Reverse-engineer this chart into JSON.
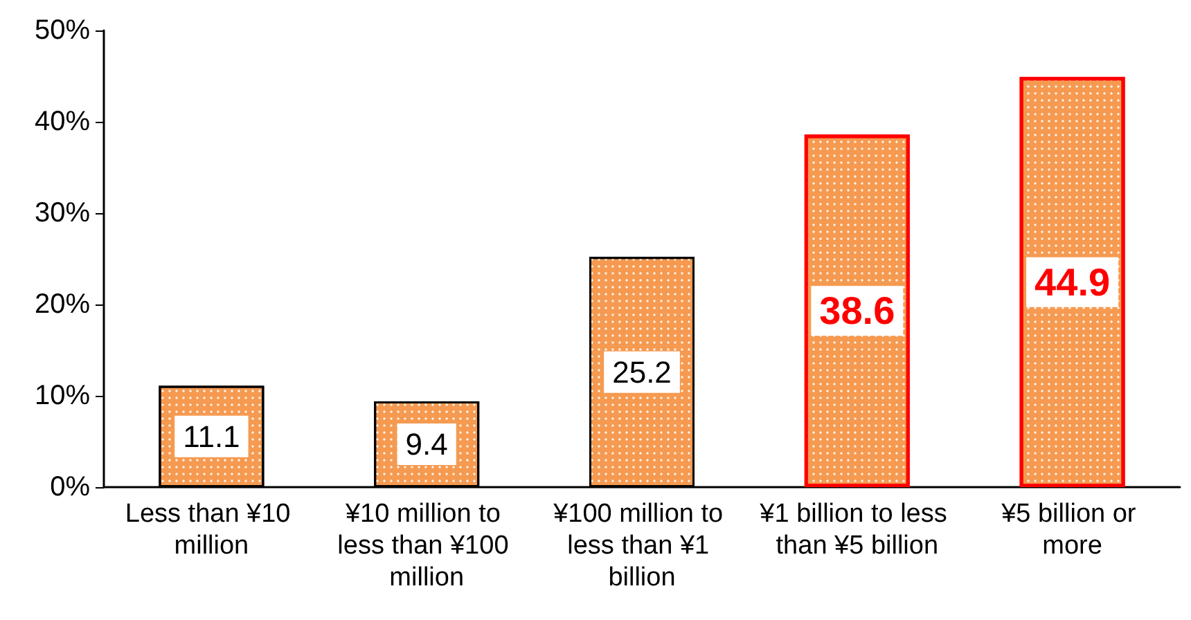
{
  "chart_data": {
    "type": "bar",
    "categories": [
      "Less than ¥10 million",
      "¥10 million to less than ¥100 million",
      "¥100 million to less than ¥1 billion",
      "¥1 billion to less than ¥5 billion",
      "¥5 billion or more"
    ],
    "series": [
      {
        "color": "#f59a50",
        "values": [
          11.1,
          9.4,
          25.2,
          null,
          null
        ]
      },
      {
        "color": "#f59a50",
        "values": [
          null,
          null,
          null,
          38.6,
          44.9
        ]
      }
    ],
    "stacked": true,
    "data_labels": true,
    "grid": false,
    "ylim": [
      0,
      50
    ],
    "yticks": [
      {
        "value": 0,
        "label": "0%"
      },
      {
        "value": 10,
        "label": "10%"
      },
      {
        "value": 20,
        "label": "20%"
      },
      {
        "value": 30,
        "label": "30%"
      },
      {
        "value": 40,
        "label": "40%"
      },
      {
        "value": 50,
        "label": "50%"
      }
    ]
  }
}
